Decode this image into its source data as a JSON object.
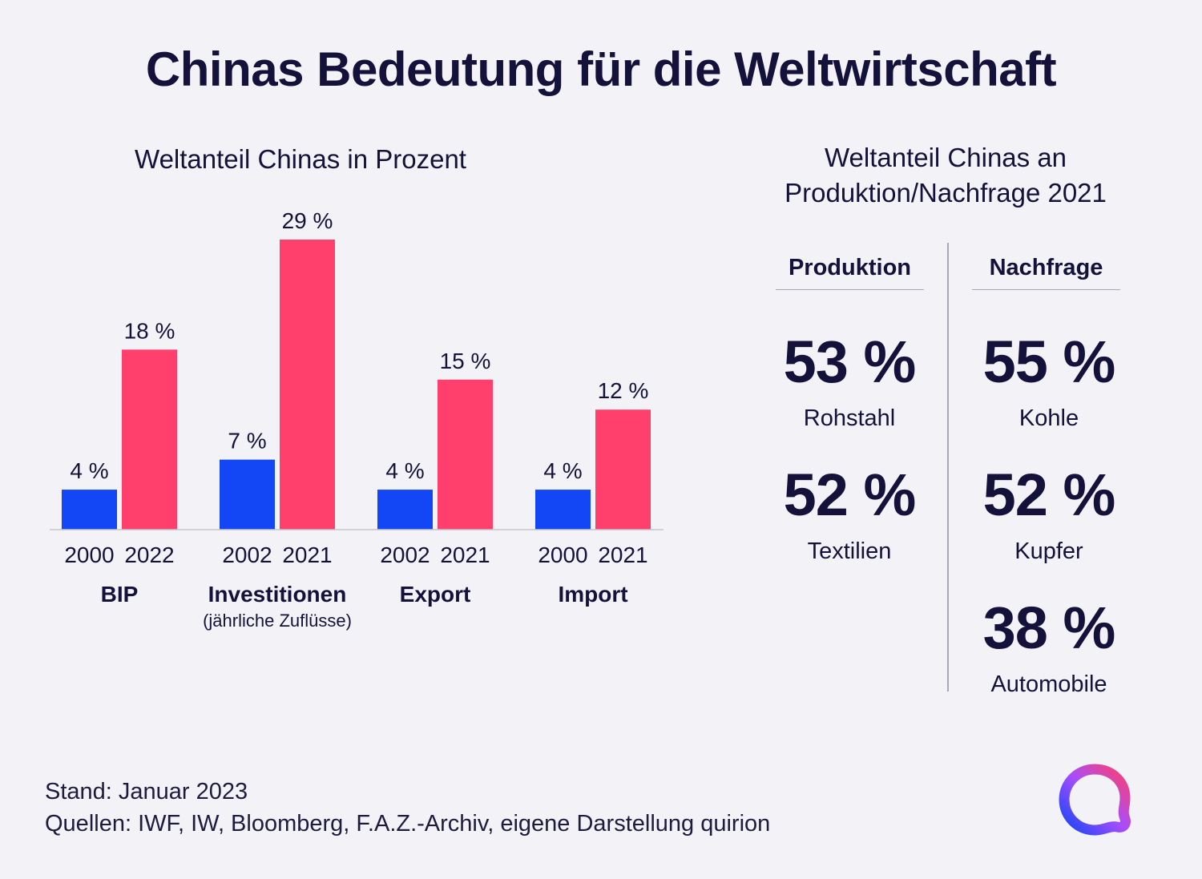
{
  "title": "Chinas Bedeutung für die Weltwirtschaft",
  "left": {
    "subtitle": "Weltanteil Chinas in Prozent"
  },
  "chart_data": {
    "type": "bar",
    "title": "Weltanteil Chinas in Prozent",
    "unit": "%",
    "ylim": [
      0,
      29
    ],
    "grid": false,
    "colors": {
      "earlier": "#1346f5",
      "later": "#ff3f6c"
    },
    "groups": [
      {
        "category": "BIP",
        "sublabel": "",
        "bars": [
          {
            "year": "2000",
            "value": 4,
            "label": "4 %"
          },
          {
            "year": "2022",
            "value": 18,
            "label": "18 %"
          }
        ]
      },
      {
        "category": "Investitionen",
        "sublabel": "(jährliche Zuflüsse)",
        "bars": [
          {
            "year": "2002",
            "value": 7,
            "label": "7 %"
          },
          {
            "year": "2021",
            "value": 29,
            "label": "29 %"
          }
        ]
      },
      {
        "category": "Export",
        "sublabel": "",
        "bars": [
          {
            "year": "2002",
            "value": 4,
            "label": "4 %"
          },
          {
            "year": "2021",
            "value": 15,
            "label": "15 %"
          }
        ]
      },
      {
        "category": "Import",
        "sublabel": "",
        "bars": [
          {
            "year": "2000",
            "value": 4,
            "label": "4 %"
          },
          {
            "year": "2021",
            "value": 12,
            "label": "12 %"
          }
        ]
      }
    ]
  },
  "right": {
    "subtitle_line1": "Weltanteil Chinas an",
    "subtitle_line2": "Produktion/Nachfrage 2021",
    "production": {
      "header": "Produktion",
      "items": [
        {
          "value": "53 %",
          "label": "Rohstahl"
        },
        {
          "value": "52 %",
          "label": "Textilien"
        }
      ]
    },
    "demand": {
      "header": "Nachfrage",
      "items": [
        {
          "value": "55 %",
          "label": "Kohle"
        },
        {
          "value": "52 %",
          "label": "Kupfer"
        },
        {
          "value": "38 %",
          "label": "Automobile"
        }
      ]
    }
  },
  "footer": {
    "stand": "Stand: Januar 2023",
    "sources": "Quellen: IWF, IW, Bloomberg, F.A.Z.-Archiv, eigene Darstellung quirion"
  },
  "logo": {
    "icon": "quirion-logo-icon",
    "colors": [
      "#ff3f6c",
      "#a64dff",
      "#1346f5"
    ]
  }
}
